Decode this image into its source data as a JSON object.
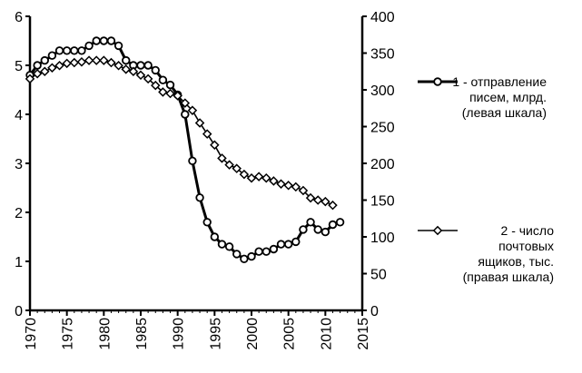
{
  "chart_data": {
    "type": "line",
    "title": "",
    "xlabel": "",
    "ylabel_left": "",
    "ylabel_right": "",
    "xlim": [
      1970,
      2015
    ],
    "ylim_left": [
      0,
      6
    ],
    "ylim_right": [
      0,
      400
    ],
    "x_ticks": [
      "1970",
      "1975",
      "1980",
      "1985",
      "1990",
      "1995",
      "2000",
      "2005",
      "2010",
      "2015"
    ],
    "y_left_ticks": [
      "0",
      "1",
      "2",
      "3",
      "4",
      "5",
      "6"
    ],
    "y_right_ticks": [
      "0",
      "50",
      "100",
      "150",
      "200",
      "250",
      "300",
      "350",
      "400"
    ],
    "grid": false,
    "legend_position": "right",
    "series": [
      {
        "name_lines": [
          "1 - отправление",
          "писем, млрд.",
          "(левая шкала)"
        ],
        "axis": "left",
        "marker": "circle",
        "x": [
          1970,
          1971,
          1972,
          1973,
          1974,
          1975,
          1976,
          1977,
          1978,
          1979,
          1980,
          1981,
          1982,
          1983,
          1984,
          1985,
          1986,
          1987,
          1988,
          1989,
          1990,
          1991,
          1992,
          1993,
          1994,
          1995,
          1996,
          1997,
          1998,
          1999,
          2000,
          2001,
          2002,
          2003,
          2004,
          2005,
          2006,
          2007,
          2008,
          2009,
          2010,
          2011,
          2012
        ],
        "y": [
          4.8,
          5.0,
          5.1,
          5.2,
          5.3,
          5.3,
          5.3,
          5.3,
          5.4,
          5.5,
          5.5,
          5.5,
          5.4,
          5.1,
          5.0,
          5.0,
          5.0,
          4.9,
          4.7,
          4.6,
          4.4,
          4.0,
          3.05,
          2.3,
          1.8,
          1.5,
          1.35,
          1.3,
          1.15,
          1.05,
          1.1,
          1.2,
          1.2,
          1.25,
          1.35,
          1.35,
          1.4,
          1.65,
          1.8,
          1.65,
          1.6,
          1.75,
          1.8
        ]
      },
      {
        "name_lines": [
          "2 - число",
          "почтовых",
          "ящиков, тыс.",
          "(правая шкала)"
        ],
        "axis": "right",
        "marker": "diamond",
        "x": [
          1970,
          1971,
          1972,
          1973,
          1974,
          1975,
          1976,
          1977,
          1978,
          1979,
          1980,
          1981,
          1982,
          1983,
          1984,
          1985,
          1986,
          1987,
          1988,
          1989,
          1990,
          1991,
          1992,
          1993,
          1994,
          1995,
          1996,
          1997,
          1998,
          1999,
          2000,
          2001,
          2002,
          2003,
          2004,
          2005,
          2006,
          2007,
          2008,
          2009,
          2010,
          2011
        ],
        "y": [
          315,
          322,
          325,
          330,
          333,
          336,
          337,
          338,
          340,
          340,
          340,
          337,
          333,
          328,
          325,
          320,
          315,
          306,
          297,
          295,
          292,
          282,
          272,
          255,
          240,
          225,
          207,
          198,
          193,
          185,
          180,
          182,
          180,
          176,
          172,
          170,
          168,
          163,
          153,
          150,
          148,
          143
        ]
      }
    ]
  }
}
